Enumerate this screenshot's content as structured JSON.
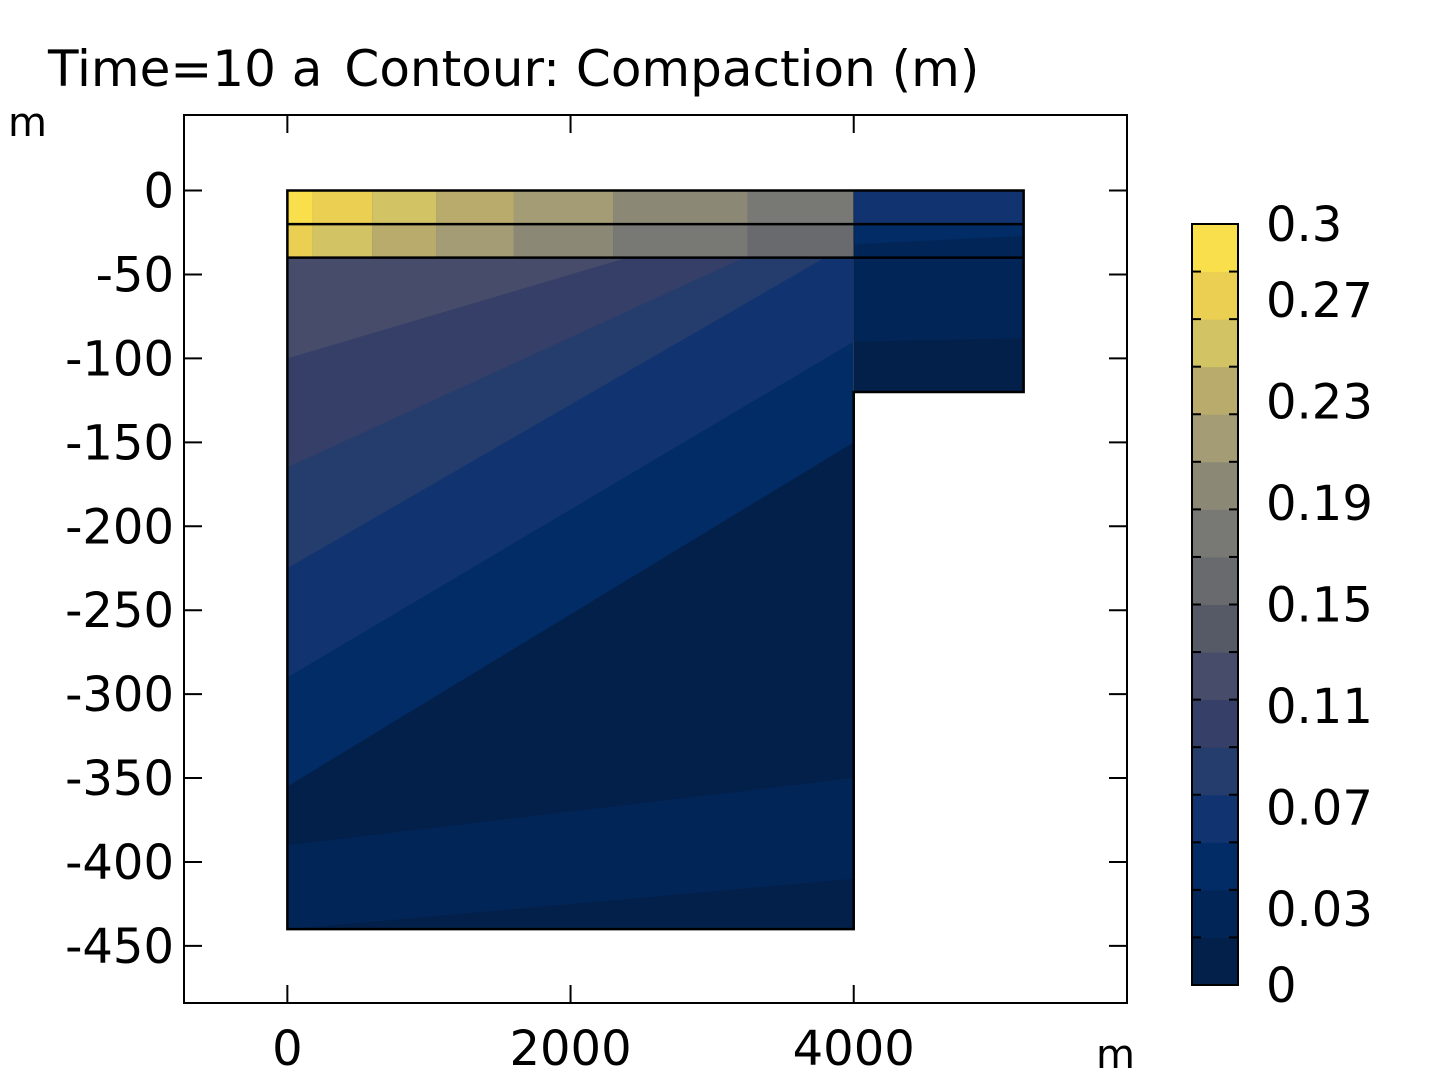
{
  "chart_data": {
    "type": "heatmap",
    "title": "Time=10 a",
    "subtitle": "Contour: Compaction (m)",
    "x_unit": "m",
    "y_unit": "m",
    "x_ticks": [
      0,
      2000,
      4000
    ],
    "y_ticks": [
      0,
      -50,
      -100,
      -150,
      -200,
      -250,
      -300,
      -350,
      -400,
      -450
    ],
    "xlim": [
      -730,
      5930
    ],
    "ylim": [
      -484,
      45
    ],
    "colorbar": {
      "min": 0,
      "max": 0.3,
      "tick_labels": [
        "0.3",
        "0.27",
        "0.23",
        "0.19",
        "0.15",
        "0.11",
        "0.07",
        "0.03",
        "0"
      ],
      "tick_values": [
        0.3,
        0.27,
        0.23,
        0.19,
        0.15,
        0.11,
        0.07,
        0.03,
        0
      ],
      "levels": 15,
      "colors": [
        "#02204a",
        "#022558",
        "#022c65",
        "#113470",
        "#243d6c",
        "#353f68",
        "#474c6a",
        "#565a67",
        "#686a6e",
        "#787874",
        "#8b8876",
        "#a39c74",
        "#b8ab6c",
        "#d2c364",
        "#eacf53",
        "#f9df4b"
      ]
    },
    "domain": {
      "main_block": {
        "x": [
          0,
          4000
        ],
        "y": [
          -440,
          0
        ]
      },
      "side_block": {
        "x": [
          4000,
          5200
        ],
        "y": [
          -120,
          0
        ]
      },
      "layer_boundaries_y": [
        -20,
        -40
      ]
    },
    "contour_bands": {
      "main_left_y": [
        -355,
        -290,
        -225,
        -165,
        -100,
        -30,
        -5
      ],
      "main_right_y": [
        -150,
        -90,
        -30,
        -10,
        0,
        0,
        0
      ],
      "main_bottom_left_y": [
        -440,
        -390
      ],
      "main_bottom_right_y": [
        -410,
        -350
      ],
      "top_strip_x_breaks": [
        180,
        600,
        1050,
        1600,
        2300,
        3250,
        4000
      ]
    }
  }
}
